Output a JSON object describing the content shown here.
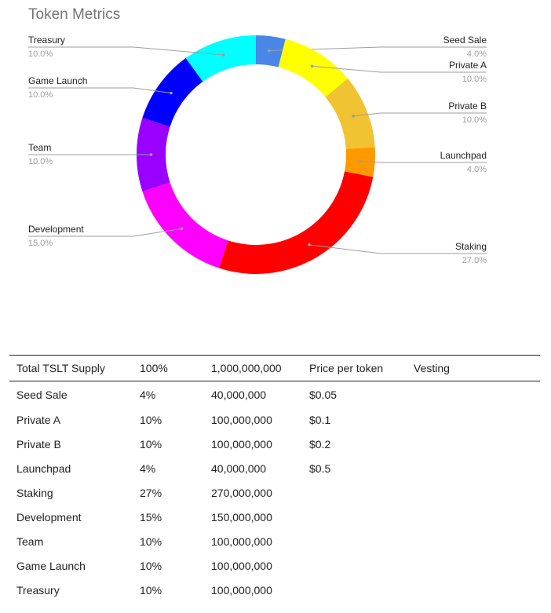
{
  "chart_data": {
    "type": "pie",
    "donut": true,
    "title": "Token Metrics",
    "legend_placement": "labels-with-leader-lines",
    "slices": [
      {
        "label": "Seed Sale",
        "value": 4.0,
        "value_label": "4.0%",
        "color": "#4a86e8"
      },
      {
        "label": "Private A",
        "value": 10.0,
        "value_label": "10.0%",
        "color": "#ffff00"
      },
      {
        "label": "Private B",
        "value": 10.0,
        "value_label": "10.0%",
        "color": "#f1c232"
      },
      {
        "label": "Launchpad",
        "value": 4.0,
        "value_label": "4.0%",
        "color": "#ff9900"
      },
      {
        "label": "Staking",
        "value": 27.0,
        "value_label": "27.0%",
        "color": "#ff0000"
      },
      {
        "label": "Development",
        "value": 15.0,
        "value_label": "15.0%",
        "color": "#ff00ff"
      },
      {
        "label": "Team",
        "value": 10.0,
        "value_label": "10.0%",
        "color": "#9900ff"
      },
      {
        "label": "Game Launch",
        "value": 10.0,
        "value_label": "10.0%",
        "color": "#0000ff"
      },
      {
        "label": "Treasury",
        "value": 10.0,
        "value_label": "10.0%",
        "color": "#00ffff"
      }
    ]
  },
  "table": {
    "header": [
      "Total TSLT Supply",
      "100%",
      "1,000,000,000",
      "Price per token",
      "Vesting"
    ],
    "rows": [
      [
        "Seed Sale",
        "4%",
        "40,000,000",
        "$0.05",
        ""
      ],
      [
        "Private A",
        "10%",
        "100,000,000",
        "$0.1",
        ""
      ],
      [
        "Private B",
        "10%",
        "100,000,000",
        "$0.2",
        ""
      ],
      [
        "Launchpad",
        "4%",
        "40,000,000",
        "$0.5",
        ""
      ],
      [
        "Staking",
        "27%",
        "270,000,000",
        "",
        ""
      ],
      [
        "Development",
        "15%",
        "150,000,000",
        "",
        ""
      ],
      [
        "Team",
        "10%",
        "100,000,000",
        "",
        ""
      ],
      [
        "Game Launch",
        "10%",
        "100,000,000",
        "",
        ""
      ],
      [
        "Treasury",
        "10%",
        "100,000,000",
        "",
        ""
      ]
    ]
  }
}
